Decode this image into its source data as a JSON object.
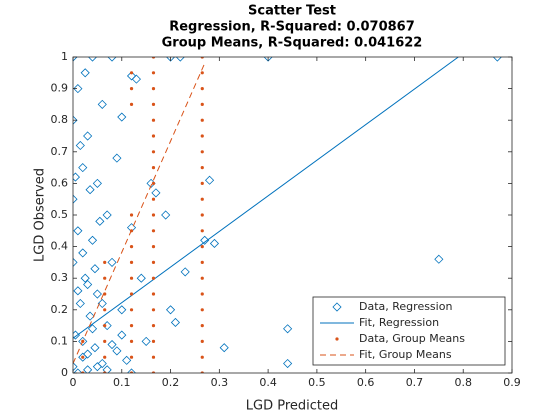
{
  "chart_data": {
    "type": "scatter",
    "title": "Scatter Test",
    "subtitle": [
      "Regression, R-Squared: 0.070867",
      "Group Means, R-Squared: 0.041622"
    ],
    "x_label": "LGD Predicted",
    "y_label": "LGD Observed",
    "xlim": [
      0,
      0.9
    ],
    "ylim": [
      0,
      1
    ],
    "xticks": [
      0,
      0.1,
      0.2,
      0.3,
      0.4,
      0.5,
      0.6,
      0.7,
      0.8,
      0.9
    ],
    "yticks": [
      0,
      0.1,
      0.2,
      0.3,
      0.4,
      0.5,
      0.6,
      0.7,
      0.8,
      0.9,
      1
    ],
    "grid": false,
    "legend_loc": "southeast",
    "series": [
      {
        "name": "Data, Regression",
        "kind": "markers",
        "marker": "diamond",
        "color": "#0072bd",
        "x": [
          0,
          0,
          0,
          0,
          0,
          0.005,
          0.01,
          0.01,
          0.015,
          0.02,
          0.02,
          0.025,
          0.03,
          0.03,
          0.035,
          0.04,
          0.04,
          0.045,
          0.05,
          0.05,
          0.06,
          0.06,
          0.07,
          0.07,
          0.08,
          0.08,
          0.09,
          0.09,
          0.1,
          0.1,
          0.11,
          0.12,
          0.12,
          0.13,
          0.14,
          0.15,
          0.16,
          0.17,
          0.19,
          0.2,
          0.21,
          0.23,
          0.27,
          0.28,
          0.29,
          0.31,
          0.44,
          0.44,
          0.75,
          0.87,
          0.4,
          0.2,
          0.22,
          0.01,
          0.03,
          0.05,
          0.07,
          0.1,
          0.12,
          0.02,
          0.04,
          0.06,
          0.08,
          0.015,
          0.025,
          0.035,
          0.045,
          0.055,
          0.005,
          0.01,
          0.02,
          0.03
        ],
        "values": [
          0.02,
          0.35,
          0.55,
          0.8,
          1,
          0.12,
          0.45,
          0.9,
          0.22,
          0.05,
          0.65,
          0.3,
          0.01,
          0.75,
          0.18,
          0.42,
          1,
          0.08,
          0.6,
          0.25,
          0.03,
          0.85,
          0.15,
          0.5,
          0.35,
          1,
          0.07,
          0.68,
          0.81,
          0.2,
          0.04,
          0.46,
          0.94,
          0.93,
          0.3,
          0.1,
          0.6,
          0.57,
          0.5,
          0.2,
          0.16,
          0.32,
          0.42,
          0.61,
          0.41,
          0.08,
          0.14,
          0.03,
          0.36,
          1,
          1,
          1,
          1,
          0,
          0.28,
          0.02,
          0.01,
          0.12,
          0,
          0.38,
          0.14,
          0.22,
          0.09,
          0.72,
          0.95,
          0.58,
          0.33,
          0.48,
          0.62,
          0.26,
          0.1,
          0.06
        ]
      },
      {
        "name": "Fit, Regression",
        "kind": "line",
        "dash": false,
        "color": "#0072bd",
        "x": [
          0,
          0.79
        ],
        "values": [
          0.11,
          1
        ]
      },
      {
        "name": "Data, Group Means",
        "kind": "markers",
        "marker": "dot",
        "color": "#d95319",
        "x": [
          0.265,
          0.265,
          0.265,
          0.265,
          0.265,
          0.265,
          0.265,
          0.265,
          0.265,
          0.265,
          0.265,
          0.265,
          0.265,
          0.265,
          0.265,
          0.265,
          0.265,
          0.265,
          0.265,
          0.265,
          0.265,
          0.165,
          0.165,
          0.165,
          0.165,
          0.165,
          0.165,
          0.165,
          0.165,
          0.165,
          0.165,
          0.165,
          0.165,
          0.165,
          0.165,
          0.165,
          0.165,
          0.165,
          0.165,
          0.165,
          0.165,
          0.165,
          0.12,
          0.12,
          0.12,
          0.12,
          0.12,
          0.12,
          0.12,
          0.12,
          0.12,
          0.12,
          0.12,
          0.12,
          0.12,
          0.12,
          0.065,
          0.065,
          0.065,
          0.065,
          0.065,
          0.065,
          0.065,
          0.065,
          0.02,
          0.02,
          0.02
        ],
        "values": [
          0,
          0.05,
          0.1,
          0.15,
          0.2,
          0.25,
          0.3,
          0.35,
          0.4,
          0.45,
          0.5,
          0.55,
          0.6,
          0.65,
          0.7,
          0.75,
          0.8,
          0.85,
          0.9,
          0.95,
          1,
          0,
          0.05,
          0.1,
          0.15,
          0.2,
          0.25,
          0.3,
          0.35,
          0.4,
          0.45,
          0.5,
          0.55,
          0.6,
          0.65,
          0.7,
          0.75,
          0.8,
          0.85,
          0.9,
          0.95,
          1,
          0,
          0.05,
          0.1,
          0.15,
          0.2,
          0.25,
          0.3,
          0.35,
          0.4,
          0.45,
          0.5,
          0.85,
          0.9,
          0.95,
          0,
          0.05,
          0.1,
          0.15,
          0.2,
          0.25,
          0.3,
          0.35,
          0,
          0.05,
          0.1
        ]
      },
      {
        "name": "Fit, Group Means",
        "kind": "line",
        "dash": true,
        "color": "#d95319",
        "x": [
          0,
          0.27
        ],
        "values": [
          0.03,
          0.98
        ]
      }
    ]
  }
}
